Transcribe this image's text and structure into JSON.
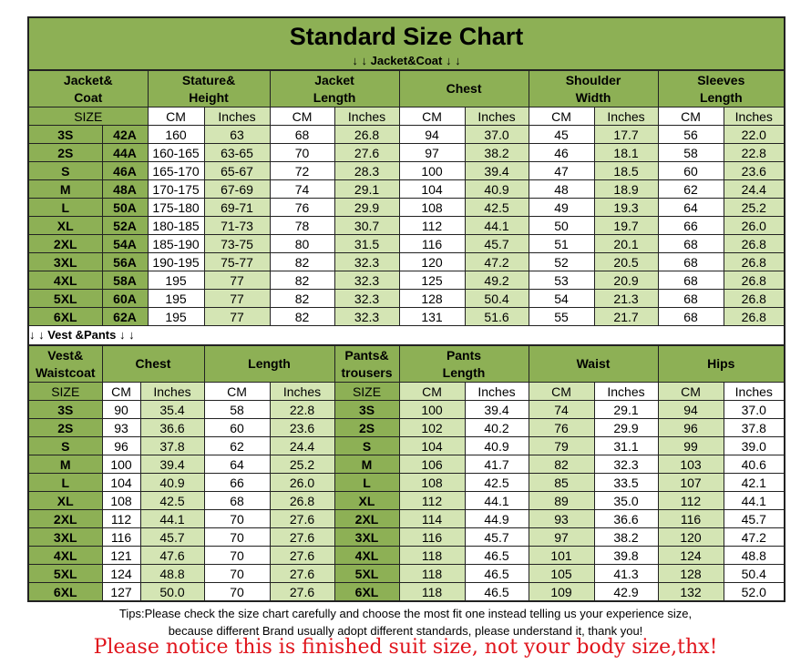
{
  "title": "Standard Size Chart",
  "jacket": {
    "subtitle": "↓ ↓ Jacket&Coat ↓ ↓",
    "headers": [
      "Jacket&\nCoat",
      "Stature&\nHeight",
      "Jacket\nLength",
      "Chest",
      "Shoulder\nWidth",
      "Sleeves\nLength"
    ],
    "units": [
      "SIZE",
      "CM",
      "Inches",
      "CM",
      "Inches",
      "CM",
      "Inches",
      "CM",
      "Inches",
      "CM",
      "Inches"
    ],
    "rows": [
      [
        "3S",
        "42A",
        "160",
        "63",
        "68",
        "26.8",
        "94",
        "37.0",
        "45",
        "17.7",
        "56",
        "22.0"
      ],
      [
        "2S",
        "44A",
        "160-165",
        "63-65",
        "70",
        "27.6",
        "97",
        "38.2",
        "46",
        "18.1",
        "58",
        "22.8"
      ],
      [
        "S",
        "46A",
        "165-170",
        "65-67",
        "72",
        "28.3",
        "100",
        "39.4",
        "47",
        "18.5",
        "60",
        "23.6"
      ],
      [
        "M",
        "48A",
        "170-175",
        "67-69",
        "74",
        "29.1",
        "104",
        "40.9",
        "48",
        "18.9",
        "62",
        "24.4"
      ],
      [
        "L",
        "50A",
        "175-180",
        "69-71",
        "76",
        "29.9",
        "108",
        "42.5",
        "49",
        "19.3",
        "64",
        "25.2"
      ],
      [
        "XL",
        "52A",
        "180-185",
        "71-73",
        "78",
        "30.7",
        "112",
        "44.1",
        "50",
        "19.7",
        "66",
        "26.0"
      ],
      [
        "2XL",
        "54A",
        "185-190",
        "73-75",
        "80",
        "31.5",
        "116",
        "45.7",
        "51",
        "20.1",
        "68",
        "26.8"
      ],
      [
        "3XL",
        "56A",
        "190-195",
        "75-77",
        "82",
        "32.3",
        "120",
        "47.2",
        "52",
        "20.5",
        "68",
        "26.8"
      ],
      [
        "4XL",
        "58A",
        "195",
        "77",
        "82",
        "32.3",
        "125",
        "49.2",
        "53",
        "20.9",
        "68",
        "26.8"
      ],
      [
        "5XL",
        "60A",
        "195",
        "77",
        "82",
        "32.3",
        "128",
        "50.4",
        "54",
        "21.3",
        "68",
        "26.8"
      ],
      [
        "6XL",
        "62A",
        "195",
        "77",
        "82",
        "32.3",
        "131",
        "51.6",
        "55",
        "21.7",
        "68",
        "26.8"
      ]
    ]
  },
  "vest": {
    "subtitle": "↓ ↓ Vest &Pants ↓ ↓",
    "headers": [
      "Vest&\nWaistcoat",
      "Chest",
      "Length",
      "Pants&\ntrousers",
      "Pants\nLength",
      "Waist",
      "Hips"
    ],
    "units": [
      "SIZE",
      "CM",
      "Inches",
      "CM",
      "Inches",
      "SIZE",
      "CM",
      "Inches",
      "CM",
      "Inches",
      "CM",
      "Inches"
    ],
    "rows": [
      [
        "3S",
        "90",
        "35.4",
        "58",
        "22.8",
        "3S",
        "100",
        "39.4",
        "74",
        "29.1",
        "94",
        "37.0"
      ],
      [
        "2S",
        "93",
        "36.6",
        "60",
        "23.6",
        "2S",
        "102",
        "40.2",
        "76",
        "29.9",
        "96",
        "37.8"
      ],
      [
        "S",
        "96",
        "37.8",
        "62",
        "24.4",
        "S",
        "104",
        "40.9",
        "79",
        "31.1",
        "99",
        "39.0"
      ],
      [
        "M",
        "100",
        "39.4",
        "64",
        "25.2",
        "M",
        "106",
        "41.7",
        "82",
        "32.3",
        "103",
        "40.6"
      ],
      [
        "L",
        "104",
        "40.9",
        "66",
        "26.0",
        "L",
        "108",
        "42.5",
        "85",
        "33.5",
        "107",
        "42.1"
      ],
      [
        "XL",
        "108",
        "42.5",
        "68",
        "26.8",
        "XL",
        "112",
        "44.1",
        "89",
        "35.0",
        "112",
        "44.1"
      ],
      [
        "2XL",
        "112",
        "44.1",
        "70",
        "27.6",
        "2XL",
        "114",
        "44.9",
        "93",
        "36.6",
        "116",
        "45.7"
      ],
      [
        "3XL",
        "116",
        "45.7",
        "70",
        "27.6",
        "3XL",
        "116",
        "45.7",
        "97",
        "38.2",
        "120",
        "47.2"
      ],
      [
        "4XL",
        "121",
        "47.6",
        "70",
        "27.6",
        "4XL",
        "118",
        "46.5",
        "101",
        "39.8",
        "124",
        "48.8"
      ],
      [
        "5XL",
        "124",
        "48.8",
        "70",
        "27.6",
        "5XL",
        "118",
        "46.5",
        "105",
        "41.3",
        "128",
        "50.4"
      ],
      [
        "6XL",
        "127",
        "50.0",
        "70",
        "27.6",
        "6XL",
        "118",
        "46.5",
        "109",
        "42.9",
        "132",
        "52.0"
      ]
    ]
  },
  "tips": [
    "Tips:Please check the size chart carefully and choose the most fit one instead telling us your experience size,",
    "because different Brand usually adopt different standards, please understand it, thank you!"
  ],
  "notice": "Please notice this is finished suit size, not your body size,thx!"
}
